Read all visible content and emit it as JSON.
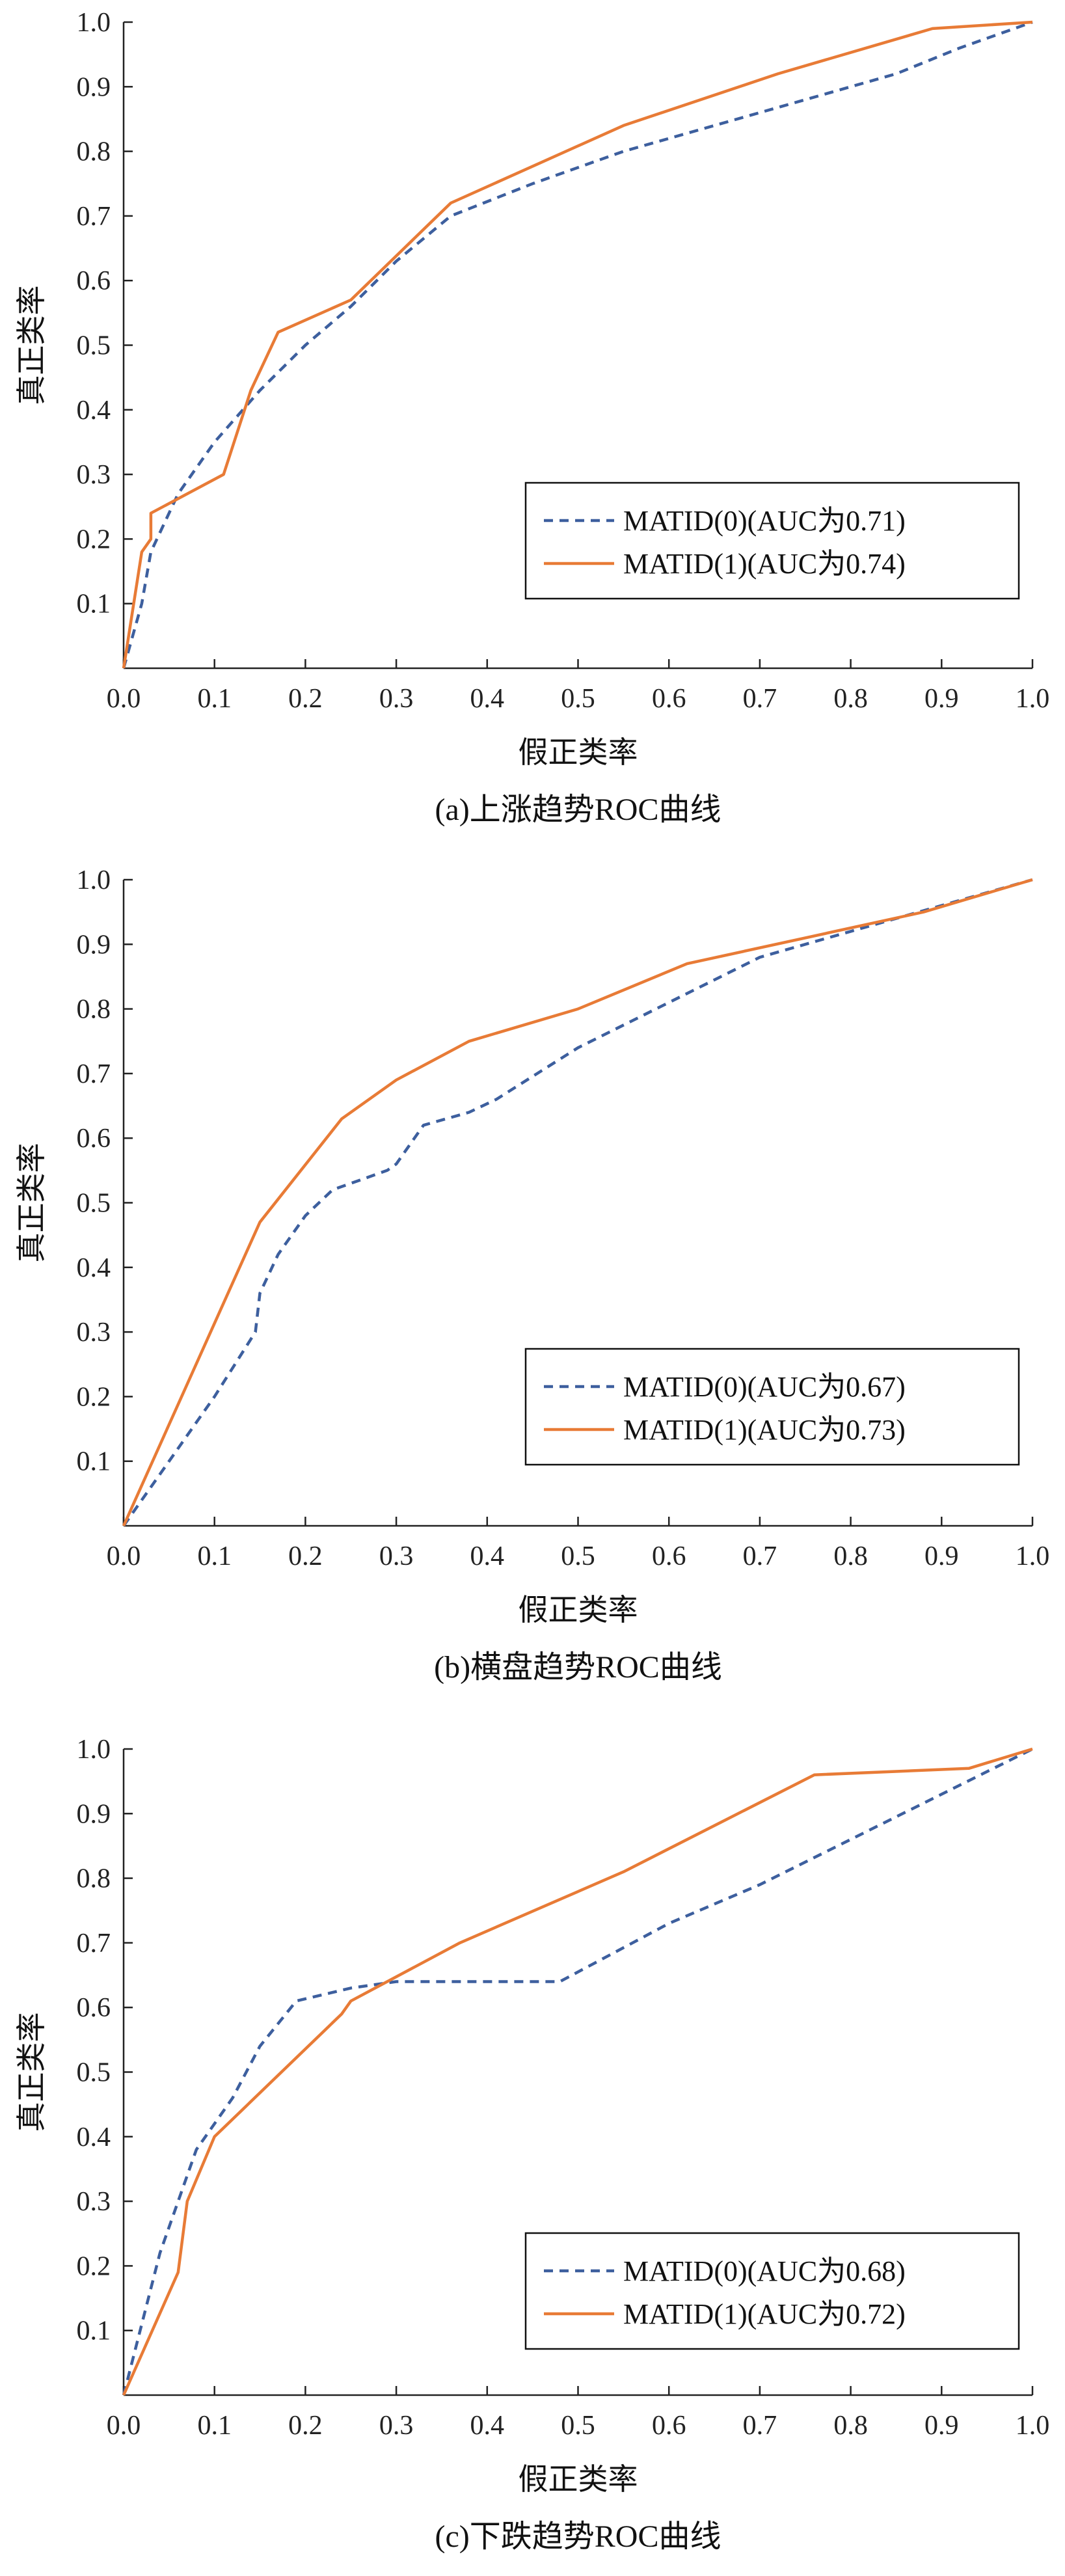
{
  "chart_data": [
    {
      "type": "line",
      "caption": "(a)上涨趋势ROC曲线",
      "xlabel": "假正类率",
      "ylabel": "真正类率",
      "xlim": [
        0,
        1
      ],
      "ylim": [
        0,
        1
      ],
      "xticks": [
        "0.0",
        "0.1",
        "0.2",
        "0.3",
        "0.4",
        "0.5",
        "0.6",
        "0.7",
        "0.8",
        "0.9",
        "1.0"
      ],
      "yticks": [
        "0.1",
        "0.2",
        "0.3",
        "0.4",
        "0.5",
        "0.6",
        "0.7",
        "0.8",
        "0.9",
        "1.0"
      ],
      "grid": false,
      "legend_position": "lower-right",
      "series": [
        {
          "name": "MATID(0)(AUC为0.71)",
          "color": "#3d5f9e",
          "style": "dashed",
          "x": [
            0.0,
            0.02,
            0.03,
            0.06,
            0.1,
            0.15,
            0.2,
            0.25,
            0.3,
            0.36,
            0.45,
            0.55,
            0.65,
            0.75,
            0.85,
            0.92,
            1.0
          ],
          "y": [
            0.0,
            0.1,
            0.18,
            0.27,
            0.35,
            0.43,
            0.5,
            0.56,
            0.63,
            0.7,
            0.75,
            0.8,
            0.84,
            0.88,
            0.92,
            0.96,
            1.0
          ]
        },
        {
          "name": "MATID(1)(AUC为0.74)",
          "color": "#e87b36",
          "style": "solid",
          "x": [
            0.0,
            0.02,
            0.03,
            0.03,
            0.11,
            0.14,
            0.17,
            0.25,
            0.36,
            0.55,
            0.72,
            0.89,
            1.0
          ],
          "y": [
            0.0,
            0.18,
            0.2,
            0.24,
            0.3,
            0.43,
            0.52,
            0.57,
            0.72,
            0.84,
            0.92,
            0.99,
            1.0
          ]
        }
      ]
    },
    {
      "type": "line",
      "caption": "(b)横盘趋势ROC曲线",
      "xlabel": "假正类率",
      "ylabel": "真正类率",
      "xlim": [
        0,
        1
      ],
      "ylim": [
        0,
        1
      ],
      "xticks": [
        "0.0",
        "0.1",
        "0.2",
        "0.3",
        "0.4",
        "0.5",
        "0.6",
        "0.7",
        "0.8",
        "0.9",
        "1.0"
      ],
      "yticks": [
        "0.1",
        "0.2",
        "0.3",
        "0.4",
        "0.5",
        "0.6",
        "0.7",
        "0.8",
        "0.9",
        "1.0"
      ],
      "grid": false,
      "legend_position": "lower-right",
      "series": [
        {
          "name": "MATID(0)(AUC为0.67)",
          "color": "#3d5f9e",
          "style": "dashed",
          "x": [
            0.0,
            0.05,
            0.1,
            0.145,
            0.15,
            0.17,
            0.2,
            0.23,
            0.29,
            0.3,
            0.33,
            0.38,
            0.41,
            0.5,
            0.6,
            0.7,
            0.8,
            0.9,
            1.0
          ],
          "y": [
            0.0,
            0.1,
            0.2,
            0.3,
            0.36,
            0.42,
            0.48,
            0.52,
            0.55,
            0.56,
            0.62,
            0.64,
            0.66,
            0.74,
            0.81,
            0.88,
            0.92,
            0.96,
            1.0
          ]
        },
        {
          "name": "MATID(1)(AUC为0.73)",
          "color": "#e87b36",
          "style": "solid",
          "x": [
            0.0,
            0.15,
            0.24,
            0.3,
            0.38,
            0.5,
            0.62,
            0.75,
            0.88,
            1.0
          ],
          "y": [
            0.0,
            0.47,
            0.63,
            0.69,
            0.75,
            0.8,
            0.87,
            0.91,
            0.95,
            1.0
          ]
        }
      ]
    },
    {
      "type": "line",
      "caption": "(c)下跌趋势ROC曲线",
      "xlabel": "假正类率",
      "ylabel": "真正类率",
      "xlim": [
        0,
        1
      ],
      "ylim": [
        0,
        1
      ],
      "xticks": [
        "0.0",
        "0.1",
        "0.2",
        "0.3",
        "0.4",
        "0.5",
        "0.6",
        "0.7",
        "0.8",
        "0.9",
        "1.0"
      ],
      "yticks": [
        "0.1",
        "0.2",
        "0.3",
        "0.4",
        "0.5",
        "0.6",
        "0.7",
        "0.8",
        "0.9",
        "1.0"
      ],
      "grid": false,
      "legend_position": "lower-right",
      "series": [
        {
          "name": "MATID(0)(AUC为0.68)",
          "color": "#3d5f9e",
          "style": "dashed",
          "x": [
            0.0,
            0.04,
            0.07,
            0.08,
            0.1,
            0.12,
            0.15,
            0.19,
            0.25,
            0.3,
            0.4,
            0.48,
            0.6,
            0.7,
            0.8,
            0.9,
            1.0
          ],
          "y": [
            0.0,
            0.22,
            0.34,
            0.38,
            0.42,
            0.46,
            0.54,
            0.61,
            0.63,
            0.64,
            0.64,
            0.64,
            0.73,
            0.79,
            0.86,
            0.93,
            1.0
          ]
        },
        {
          "name": "MATID(1)(AUC为0.72)",
          "color": "#e87b36",
          "style": "solid",
          "x": [
            0.0,
            0.06,
            0.07,
            0.1,
            0.24,
            0.25,
            0.37,
            0.55,
            0.76,
            0.93,
            1.0
          ],
          "y": [
            0.0,
            0.19,
            0.3,
            0.4,
            0.59,
            0.61,
            0.7,
            0.81,
            0.96,
            0.97,
            1.0
          ]
        }
      ]
    }
  ]
}
